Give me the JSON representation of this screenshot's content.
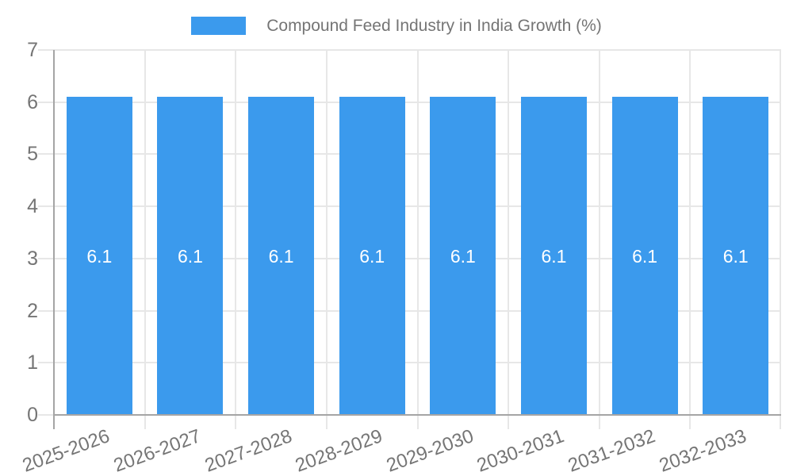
{
  "chart_data": {
    "type": "bar",
    "title": "Compound Feed Industry in India Growth (%)",
    "categories": [
      "2025-2026",
      "2026-2027",
      "2027-2028",
      "2028-2029",
      "2029-2030",
      "2030-2031",
      "2031-2032",
      "2032-2033"
    ],
    "values": [
      6.1,
      6.1,
      6.1,
      6.1,
      6.1,
      6.1,
      6.1,
      6.1
    ],
    "xlabel": "",
    "ylabel": "",
    "ylim": [
      0,
      7
    ],
    "yticks": [
      0,
      1,
      2,
      3,
      4,
      5,
      6,
      7
    ],
    "grid": true,
    "legend_position": "top",
    "x_label_rotation_deg": -20,
    "bar_color": "#3B9AED",
    "grid_color": "#E7E7E7",
    "axis_color": "#A5A5A5",
    "text_color": "#757575",
    "value_label_color": "#FFFFFF"
  }
}
